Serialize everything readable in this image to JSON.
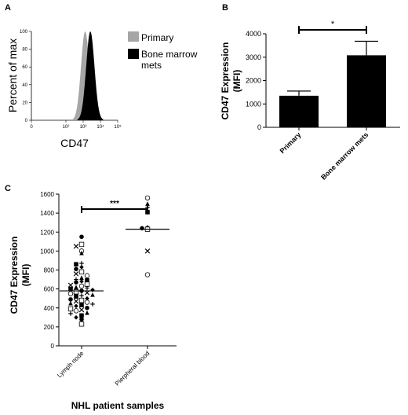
{
  "panels": {
    "a": "A",
    "b": "B",
    "c": "C"
  },
  "chart_data": [
    {
      "type": "area",
      "panel": "A",
      "ylabel": "Percent of max",
      "xlabel": "CD47",
      "x_scale": "log",
      "xlim": [
        1,
        100000
      ],
      "ylim": [
        0,
        100
      ],
      "y_ticks": [
        "0",
        "20",
        "40",
        "60",
        "80",
        "100"
      ],
      "x_ticks": [
        "0",
        "10²",
        "10³",
        "10⁴",
        "10⁵"
      ],
      "legend": [
        {
          "label": "Primary",
          "color": "#a6a6a6"
        },
        {
          "label": "Bone marrow",
          "color": "#000000"
        },
        {
          "label": "mets",
          "color": "#000000"
        }
      ],
      "series": [
        {
          "name": "Primary",
          "color": "#a6a6a6",
          "peak_x": 1300,
          "peak_y": 100
        },
        {
          "name": "Bone marrow mets",
          "color": "#000000",
          "peak_x": 2600,
          "peak_y": 100
        }
      ]
    },
    {
      "type": "bar",
      "panel": "B",
      "categories": [
        "Primary",
        "Bone marrow mets"
      ],
      "values": [
        1350,
        3080
      ],
      "errors": [
        200,
        600
      ],
      "ylabel": "CD47 Expression",
      "ylabel2": "(MFI)",
      "ylim": [
        0,
        4000
      ],
      "y_ticks": [
        "0",
        "1000",
        "2000",
        "3000",
        "4000"
      ],
      "significance": "*"
    },
    {
      "type": "scatter",
      "panel": "C",
      "categories": [
        "Lymph node",
        "Pierpheral blood"
      ],
      "ylabel": "CD47 Expression",
      "ylabel2": "(MFI)",
      "xlabel": "NHL patient samples",
      "ylim": [
        0,
        1600
      ],
      "y_ticks": [
        "0",
        "200",
        "400",
        "600",
        "800",
        "1000",
        "1200",
        "1400",
        "1600"
      ],
      "significance": "***",
      "medians": [
        580,
        1230
      ],
      "series": [
        {
          "name": "Lymph node",
          "values": [
            1150,
            1070,
            1050,
            1000,
            980,
            870,
            860,
            830,
            810,
            780,
            760,
            740,
            720,
            700,
            690,
            680,
            670,
            650,
            640,
            630,
            620,
            610,
            600,
            590,
            580,
            570,
            560,
            550,
            540,
            530,
            520,
            500,
            490,
            480,
            470,
            460,
            450,
            440,
            430,
            420,
            400,
            390,
            380,
            370,
            350,
            340,
            320,
            300,
            280,
            230
          ]
        },
        {
          "name": "Pierpheral blood",
          "values": [
            1560,
            1500,
            1460,
            1410,
            1250,
            1240,
            1230,
            1000,
            750
          ]
        }
      ]
    }
  ]
}
